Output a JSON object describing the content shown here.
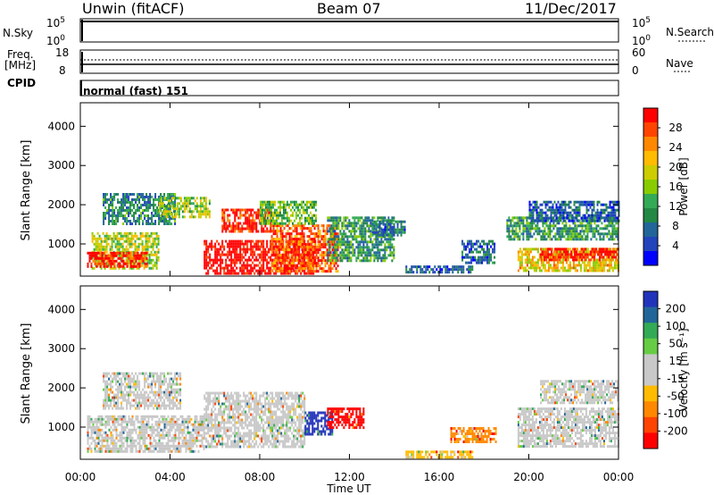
{
  "header": {
    "station": "Unwin (fitACF)",
    "beam": "Beam 07",
    "date": "11/Dec/2017"
  },
  "status_panels": {
    "nsky": {
      "label": "N.Sky",
      "ticks": [
        "10^5",
        "10^0"
      ],
      "right_ticks": [
        "10^5",
        "10^0"
      ],
      "right_label": "N.Search"
    },
    "freq": {
      "label_line1": "Freq.",
      "label_line2": "[MHz]",
      "ticks": [
        "18",
        "8"
      ],
      "right_ticks": [
        "60",
        "0"
      ],
      "right_label": "Nave"
    },
    "cpid": {
      "label": "CPID",
      "value": "normal (fast) 151"
    }
  },
  "x_axis": {
    "title": "Time UT",
    "ticks": [
      "00:00",
      "04:00",
      "08:00",
      "12:00",
      "16:00",
      "20:00",
      "00:00"
    ]
  },
  "chart_data": [
    {
      "type": "heatmap",
      "title": "",
      "xlabel": "Time UT",
      "ylabel": "Slant Range [km]",
      "ylim": [
        180,
        4600
      ],
      "yticks": [
        "4000",
        "3000",
        "2000",
        "1000"
      ],
      "colorbar": {
        "label": "Power [dB]",
        "ticks": [
          "28",
          "24",
          "20",
          "16",
          "12",
          "8",
          "4"
        ],
        "colors": [
          "#ff0000",
          "#ff4400",
          "#ff8800",
          "#ffbb00",
          "#cccc00",
          "#88cc00",
          "#33aa55",
          "#228844",
          "#226699",
          "#2244bb",
          "#0000ff"
        ]
      },
      "regions": [
        {
          "t0": 0.5,
          "t1": 3.5,
          "r0": 350,
          "r1": 1300,
          "level": 0.55
        },
        {
          "t0": 0.3,
          "t1": 3.0,
          "r0": 450,
          "r1": 800,
          "level": 0.95
        },
        {
          "t0": 1.0,
          "t1": 4.2,
          "r0": 1500,
          "r1": 2300,
          "level": 0.3
        },
        {
          "t0": 3.5,
          "t1": 5.8,
          "r0": 1700,
          "r1": 2200,
          "level": 0.5
        },
        {
          "t0": 5.5,
          "t1": 10.5,
          "r0": 250,
          "r1": 1100,
          "level": 1.0
        },
        {
          "t0": 6.3,
          "t1": 8.5,
          "r0": 1300,
          "r1": 1900,
          "level": 0.95
        },
        {
          "t0": 8.5,
          "t1": 11.5,
          "r0": 300,
          "r1": 1500,
          "level": 0.85
        },
        {
          "t0": 8.0,
          "t1": 10.5,
          "r0": 1500,
          "r1": 2100,
          "level": 0.45
        },
        {
          "t0": 11.0,
          "t1": 14.0,
          "r0": 600,
          "r1": 1700,
          "level": 0.35
        },
        {
          "t0": 13.0,
          "t1": 14.5,
          "r0": 1200,
          "r1": 1600,
          "level": 0.25
        },
        {
          "t0": 14.5,
          "t1": 17.5,
          "r0": 250,
          "r1": 450,
          "level": 0.2
        },
        {
          "t0": 17.0,
          "t1": 18.5,
          "r0": 500,
          "r1": 1100,
          "level": 0.2
        },
        {
          "t0": 19.5,
          "t1": 24.0,
          "r0": 300,
          "r1": 900,
          "level": 0.65
        },
        {
          "t0": 20.5,
          "t1": 24.0,
          "r0": 600,
          "r1": 900,
          "level": 0.95
        },
        {
          "t0": 19.0,
          "t1": 24.0,
          "r0": 1100,
          "r1": 1700,
          "level": 0.35
        },
        {
          "t0": 20.0,
          "t1": 24.0,
          "r0": 1600,
          "r1": 2100,
          "level": 0.2
        }
      ]
    },
    {
      "type": "heatmap",
      "title": "",
      "xlabel": "Time UT",
      "ylabel": "Slant Range [km]",
      "ylim": [
        180,
        4600
      ],
      "yticks": [
        "4000",
        "3000",
        "2000",
        "1000"
      ],
      "colorbar": {
        "label": "Velocity [m s⁻¹]",
        "ticks": [
          "200",
          "100",
          "50",
          "15",
          "-15",
          "-50",
          "-100",
          "-200"
        ],
        "colors": [
          "#2233bb",
          "#226699",
          "#33aa55",
          "#66cc44",
          "#c8c8c8",
          "#c8c8c8",
          "#ffbb00",
          "#ff8800",
          "#ff4400",
          "#ff0000"
        ]
      },
      "regions": [
        {
          "t0": 0.3,
          "t1": 5.5,
          "r0": 400,
          "r1": 1300,
          "level": 0.5
        },
        {
          "t0": 1.0,
          "t1": 4.5,
          "r0": 1500,
          "r1": 2400,
          "level": 0.5
        },
        {
          "t0": 5.5,
          "t1": 10.0,
          "r0": 500,
          "r1": 1900,
          "level": 0.5
        },
        {
          "t0": 10.0,
          "t1": 11.2,
          "r0": 800,
          "r1": 1400,
          "level": 0.95
        },
        {
          "t0": 11.0,
          "t1": 12.6,
          "r0": 1000,
          "r1": 1500,
          "level": 0.1
        },
        {
          "t0": 14.5,
          "t1": 17.5,
          "r0": 220,
          "r1": 400,
          "level": 0.35
        },
        {
          "t0": 16.5,
          "t1": 18.5,
          "r0": 600,
          "r1": 1000,
          "level": 0.25
        },
        {
          "t0": 19.5,
          "t1": 24.0,
          "r0": 500,
          "r1": 1500,
          "level": 0.5
        },
        {
          "t0": 20.5,
          "t1": 24.0,
          "r0": 1600,
          "r1": 2200,
          "level": 0.5
        }
      ]
    }
  ]
}
